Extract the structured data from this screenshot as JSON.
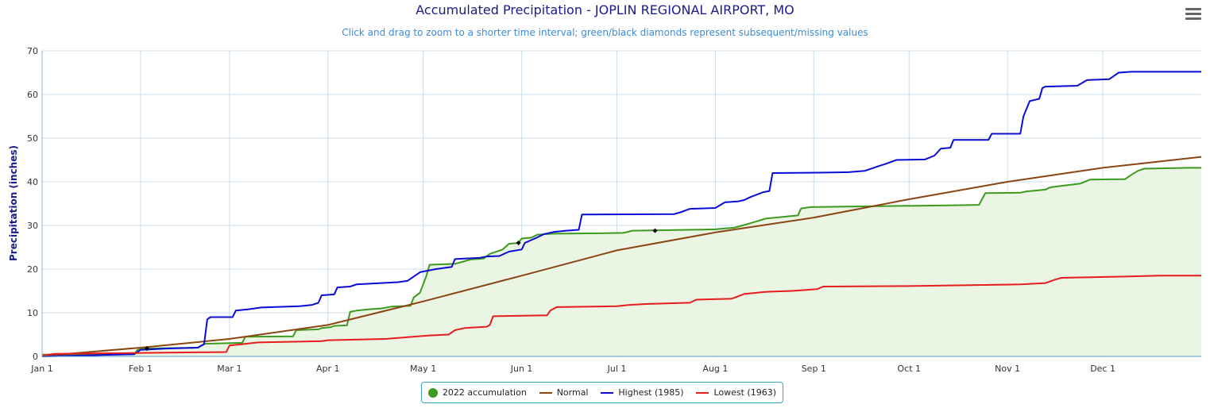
{
  "title": "Accumulated Precipitation - JOPLIN REGIONAL AIRPORT, MO",
  "subtitle": "Click and drag to zoom to a shorter time interval; green/black diamonds represent subsequent/missing values",
  "menu_icon": "hamburger-menu-icon",
  "chart_data": {
    "type": "area",
    "ylabel": "Precipitation (inches)",
    "xlabel": "",
    "ylim": [
      0,
      70
    ],
    "yticks": [
      0,
      10,
      20,
      30,
      40,
      50,
      60,
      70
    ],
    "xlim_day_of_year": [
      1,
      366
    ],
    "xticks": [
      {
        "label": "Jan 1",
        "day": 1
      },
      {
        "label": "Feb 1",
        "day": 32
      },
      {
        "label": "Mar 1",
        "day": 60
      },
      {
        "label": "Apr 1",
        "day": 91
      },
      {
        "label": "May 1",
        "day": 121
      },
      {
        "label": "Jun 1",
        "day": 152
      },
      {
        "label": "Jul 1",
        "day": 182
      },
      {
        "label": "Aug 1",
        "day": 213
      },
      {
        "label": "Sep 1",
        "day": 244
      },
      {
        "label": "Oct 1",
        "day": 274
      },
      {
        "label": "Nov 1",
        "day": 305
      },
      {
        "label": "Dec 1",
        "day": 335
      }
    ],
    "grid": true,
    "legend_position": "bottom-center",
    "series": [
      {
        "name": "2022 accumulation",
        "color": "#3c9a1e",
        "fill": "#e8f4e1",
        "style": "step-area",
        "points": [
          [
            1,
            0.4
          ],
          [
            30,
            0.5
          ],
          [
            31,
            1.5
          ],
          [
            33,
            1.8
          ],
          [
            40,
            1.9
          ],
          [
            50,
            2.0
          ],
          [
            52,
            2.9
          ],
          [
            58,
            3.0
          ],
          [
            64,
            3.1
          ],
          [
            65,
            4.5
          ],
          [
            80,
            4.6
          ],
          [
            81,
            6.0
          ],
          [
            88,
            6.2
          ],
          [
            89,
            6.5
          ],
          [
            92,
            6.7
          ],
          [
            93,
            7.0
          ],
          [
            97,
            7.1
          ],
          [
            98,
            10.2
          ],
          [
            100,
            10.5
          ],
          [
            104,
            10.8
          ],
          [
            108,
            11.0
          ],
          [
            111,
            11.4
          ],
          [
            117,
            11.6
          ],
          [
            118,
            13.5
          ],
          [
            120,
            14.6
          ],
          [
            122,
            18.5
          ],
          [
            123,
            21.0
          ],
          [
            131,
            21.2
          ],
          [
            136,
            22.2
          ],
          [
            140,
            22.4
          ],
          [
            142,
            23.5
          ],
          [
            146,
            24.5
          ],
          [
            148,
            25.8
          ],
          [
            151,
            26.0
          ],
          [
            152,
            27.0
          ],
          [
            155,
            27.2
          ],
          [
            157,
            27.9
          ],
          [
            162,
            28.1
          ],
          [
            177,
            28.2
          ],
          [
            184,
            28.3
          ],
          [
            187,
            28.8
          ],
          [
            213,
            29.1
          ],
          [
            219,
            29.5
          ],
          [
            223,
            30.3
          ],
          [
            229,
            31.6
          ],
          [
            239,
            32.3
          ],
          [
            240,
            33.9
          ],
          [
            243,
            34.2
          ],
          [
            252,
            34.3
          ],
          [
            286,
            34.6
          ],
          [
            296,
            34.7
          ],
          [
            298,
            37.4
          ],
          [
            309,
            37.5
          ],
          [
            311,
            37.8
          ],
          [
            317,
            38.2
          ],
          [
            318,
            38.6
          ],
          [
            319,
            38.8
          ],
          [
            328,
            39.6
          ],
          [
            331,
            40.5
          ],
          [
            342,
            40.6
          ],
          [
            344,
            41.6
          ],
          [
            346,
            42.5
          ],
          [
            348,
            43.0
          ],
          [
            362,
            43.2
          ],
          [
            366,
            43.2
          ]
        ],
        "markers": [
          {
            "day": 34,
            "value": 1.8
          },
          {
            "day": 151,
            "value": 26.0
          },
          {
            "day": 194,
            "value": 28.8
          }
        ]
      },
      {
        "name": "Normal",
        "color": "#8b4513",
        "style": "line",
        "points": [
          [
            1,
            0.1
          ],
          [
            32,
            2.0
          ],
          [
            60,
            4.0
          ],
          [
            91,
            7.2
          ],
          [
            121,
            12.6
          ],
          [
            152,
            18.5
          ],
          [
            182,
            24.3
          ],
          [
            213,
            28.4
          ],
          [
            244,
            31.8
          ],
          [
            274,
            36.0
          ],
          [
            305,
            40.0
          ],
          [
            335,
            43.2
          ],
          [
            366,
            45.7
          ]
        ]
      },
      {
        "name": "Highest (1985)",
        "color": "#0b0bd6",
        "style": "step",
        "points": [
          [
            1,
            0.0
          ],
          [
            8,
            0.1
          ],
          [
            30,
            0.5
          ],
          [
            32,
            1.5
          ],
          [
            40,
            1.8
          ],
          [
            50,
            2.0
          ],
          [
            52,
            2.8
          ],
          [
            53,
            8.5
          ],
          [
            54,
            9.0
          ],
          [
            61,
            9.0
          ],
          [
            62,
            10.5
          ],
          [
            66,
            10.8
          ],
          [
            70,
            11.2
          ],
          [
            82,
            11.5
          ],
          [
            86,
            11.8
          ],
          [
            88,
            12.3
          ],
          [
            89,
            14.0
          ],
          [
            93,
            14.2
          ],
          [
            94,
            15.8
          ],
          [
            98,
            16.0
          ],
          [
            100,
            16.5
          ],
          [
            113,
            17.0
          ],
          [
            116,
            17.3
          ],
          [
            120,
            19.3
          ],
          [
            125,
            20.0
          ],
          [
            130,
            20.5
          ],
          [
            131,
            22.3
          ],
          [
            139,
            22.6
          ],
          [
            141,
            22.9
          ],
          [
            145,
            23.0
          ],
          [
            148,
            24.0
          ],
          [
            152,
            24.5
          ],
          [
            153,
            26.0
          ],
          [
            157,
            27.3
          ],
          [
            159,
            28.0
          ],
          [
            162,
            28.5
          ],
          [
            166,
            28.8
          ],
          [
            170,
            29.0
          ],
          [
            171,
            32.5
          ],
          [
            200,
            32.6
          ],
          [
            202,
            33.0
          ],
          [
            205,
            33.8
          ],
          [
            213,
            34.0
          ],
          [
            216,
            35.3
          ],
          [
            220,
            35.5
          ],
          [
            222,
            35.8
          ],
          [
            224,
            36.5
          ],
          [
            228,
            37.6
          ],
          [
            230,
            37.9
          ],
          [
            231,
            42.0
          ],
          [
            248,
            42.1
          ],
          [
            255,
            42.2
          ],
          [
            260,
            42.5
          ],
          [
            264,
            43.5
          ],
          [
            267,
            44.2
          ],
          [
            270,
            45.0
          ],
          [
            279,
            45.1
          ],
          [
            282,
            46.0
          ],
          [
            284,
            47.6
          ],
          [
            287,
            47.8
          ],
          [
            288,
            49.6
          ],
          [
            299,
            49.6
          ],
          [
            300,
            51.0
          ],
          [
            309,
            51.0
          ],
          [
            310,
            55.0
          ],
          [
            312,
            58.5
          ],
          [
            315,
            59.0
          ],
          [
            316,
            61.5
          ],
          [
            317,
            61.8
          ],
          [
            327,
            62.0
          ],
          [
            330,
            63.3
          ],
          [
            337,
            63.5
          ],
          [
            340,
            65.0
          ],
          [
            344,
            65.2
          ],
          [
            366,
            65.2
          ]
        ]
      },
      {
        "name": "Lowest (1963)",
        "color": "#e81c1c",
        "style": "step",
        "points": [
          [
            1,
            0.2
          ],
          [
            5,
            0.6
          ],
          [
            32,
            0.8
          ],
          [
            59,
            1.0
          ],
          [
            60,
            2.5
          ],
          [
            64,
            2.8
          ],
          [
            69,
            3.2
          ],
          [
            89,
            3.5
          ],
          [
            91,
            3.7
          ],
          [
            109,
            4.0
          ],
          [
            116,
            4.4
          ],
          [
            123,
            4.8
          ],
          [
            129,
            5.0
          ],
          [
            131,
            6.0
          ],
          [
            134,
            6.5
          ],
          [
            141,
            6.8
          ],
          [
            142,
            7.2
          ],
          [
            143,
            9.2
          ],
          [
            160,
            9.4
          ],
          [
            161,
            10.5
          ],
          [
            163,
            11.3
          ],
          [
            182,
            11.5
          ],
          [
            186,
            11.8
          ],
          [
            191,
            12.0
          ],
          [
            205,
            12.3
          ],
          [
            207,
            13.0
          ],
          [
            218,
            13.2
          ],
          [
            220,
            13.7
          ],
          [
            222,
            14.3
          ],
          [
            229,
            14.8
          ],
          [
            237,
            15.0
          ],
          [
            245,
            15.4
          ],
          [
            247,
            16.0
          ],
          [
            274,
            16.1
          ],
          [
            309,
            16.5
          ],
          [
            317,
            16.8
          ],
          [
            320,
            17.6
          ],
          [
            322,
            18.0
          ],
          [
            342,
            18.3
          ],
          [
            353,
            18.5
          ],
          [
            366,
            18.5
          ]
        ]
      }
    ]
  },
  "legend": {
    "items": [
      {
        "label": "2022 accumulation",
        "color": "#3c9a1e",
        "shape": "dot"
      },
      {
        "label": "Normal",
        "color": "#8b4513",
        "shape": "line"
      },
      {
        "label": "Highest (1985)",
        "color": "#0b0bd6",
        "shape": "line"
      },
      {
        "label": "Lowest (1963)",
        "color": "#e81c1c",
        "shape": "line"
      }
    ]
  }
}
